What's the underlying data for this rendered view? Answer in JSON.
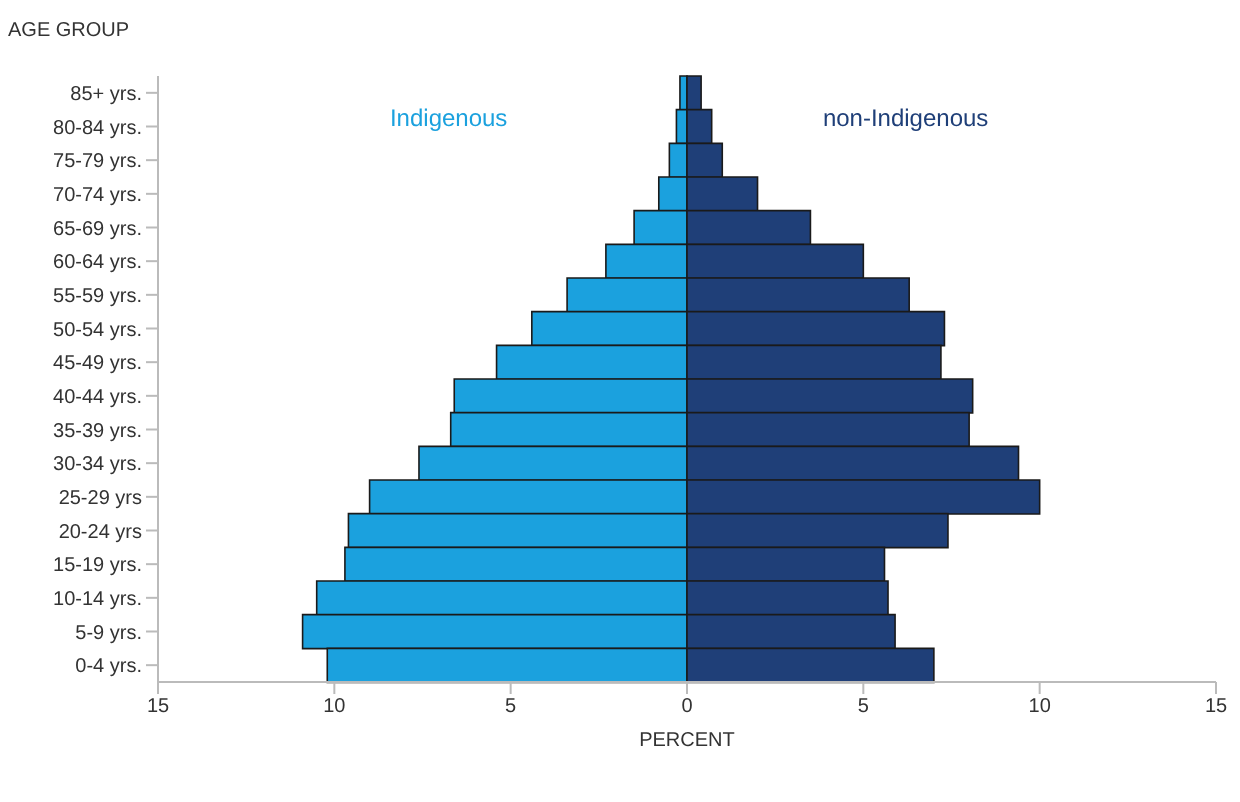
{
  "chart_data": {
    "type": "bar",
    "orientation": "horizontal",
    "stacked": true,
    "ylabel": "AGE GROUP",
    "xlabel": "PERCENT",
    "categories": [
      "85+ yrs.",
      "80-84 yrs.",
      "75-79 yrs.",
      "70-74 yrs.",
      "65-69 yrs.",
      "60-64 yrs.",
      "55-59 yrs.",
      "50-54 yrs.",
      "45-49 yrs.",
      "40-44 yrs.",
      "35-39 yrs.",
      "30-34 yrs.",
      "25-29 yrs",
      "20-24 yrs",
      "15-19 yrs.",
      "10-14 yrs.",
      "5-9 yrs.",
      "0-4 yrs."
    ],
    "series": [
      {
        "name": "Indigenous",
        "color": "#1ba1de",
        "values": [
          -0.2,
          -0.3,
          -0.5,
          -0.8,
          -1.5,
          -2.3,
          -3.4,
          -4.4,
          -5.4,
          -6.6,
          -6.7,
          -7.6,
          -9.0,
          -9.6,
          -9.7,
          -10.5,
          -10.9,
          -10.2
        ]
      },
      {
        "name": "non-Indigenous",
        "color": "#1f3f78",
        "values": [
          0.4,
          0.7,
          1.0,
          2.0,
          3.5,
          5.0,
          6.3,
          7.3,
          7.2,
          8.1,
          8.0,
          9.4,
          10.0,
          7.4,
          5.6,
          5.7,
          5.9,
          7.0
        ]
      }
    ],
    "xlim": [
      -15,
      15
    ],
    "xticks": [
      {
        "value": -15,
        "label": "15"
      },
      {
        "value": -10,
        "label": "10"
      },
      {
        "value": -5,
        "label": "5"
      },
      0,
      5,
      10,
      15
    ],
    "legend": false
  }
}
